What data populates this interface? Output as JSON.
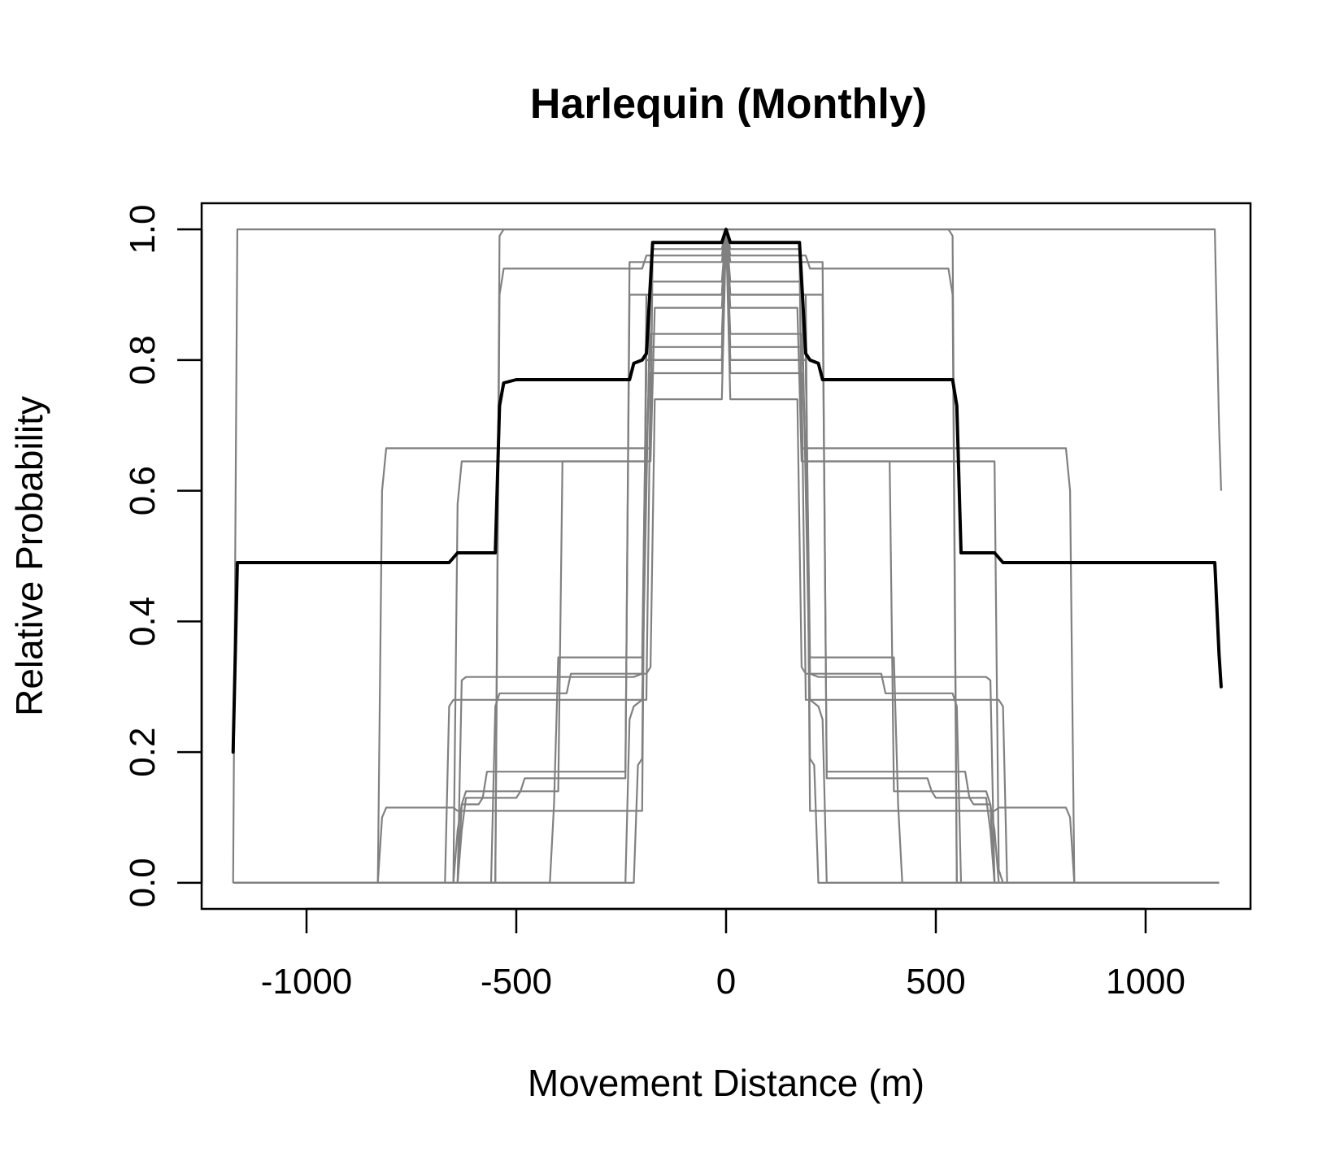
{
  "chart_data": {
    "type": "line",
    "title": "Harlequin (Monthly)",
    "xlabel": "Movement Distance (m)",
    "ylabel": "Relative Probability",
    "xlim": [
      -1250,
      1250
    ],
    "ylim": [
      -0.04,
      1.04
    ],
    "xticks": [
      -1000,
      -500,
      0,
      500,
      1000
    ],
    "xtick_labels": [
      "-1000",
      "-500",
      "0",
      "500",
      "1000"
    ],
    "yticks": [
      0.0,
      0.2,
      0.4,
      0.6,
      0.8,
      1.0
    ],
    "ytick_labels": [
      "0.0",
      "0.2",
      "0.4",
      "0.6",
      "0.8",
      "1.0"
    ],
    "grid": false,
    "legend": "none",
    "colors": {
      "mean": "#000000",
      "individual": "#808080",
      "frame": "#000000"
    },
    "mean_series": {
      "x": [
        -1175,
        -1165,
        -1155,
        -660,
        -640,
        -630,
        -550,
        -540,
        -530,
        -500,
        -400,
        -230,
        -220,
        -200,
        -190,
        -175,
        -10,
        0,
        10,
        175,
        190,
        200,
        220,
        230,
        400,
        500,
        540,
        550,
        560,
        620,
        640,
        660,
        1165,
        1175,
        1180
      ],
      "y": [
        0.2,
        0.49,
        0.49,
        0.49,
        0.505,
        0.505,
        0.505,
        0.73,
        0.765,
        0.77,
        0.77,
        0.77,
        0.795,
        0.8,
        0.81,
        0.98,
        0.98,
        1.0,
        0.98,
        0.98,
        0.81,
        0.8,
        0.795,
        0.77,
        0.77,
        0.77,
        0.77,
        0.73,
        0.505,
        0.505,
        0.505,
        0.49,
        0.49,
        0.35,
        0.3
      ]
    },
    "individual_series": [
      {
        "x": [
          -1175,
          -1170,
          -1165,
          0,
          1165,
          1175,
          1180
        ],
        "y": [
          0,
          0.5,
          1.0,
          1.0,
          1.0,
          0.7,
          0.6
        ]
      },
      {
        "x": [
          -1175,
          -830,
          -820,
          -810,
          -750,
          -740,
          -180,
          -175,
          -10,
          0,
          10,
          175,
          180,
          740,
          750,
          810,
          820,
          830,
          1175
        ],
        "y": [
          0,
          0,
          0.6,
          0.665,
          0.665,
          0.665,
          0.665,
          0.97,
          0.97,
          1.0,
          0.97,
          0.97,
          0.665,
          0.665,
          0.665,
          0.665,
          0.6,
          0,
          0
        ]
      },
      {
        "x": [
          -1175,
          -830,
          -820,
          -810,
          -650,
          -640,
          -630,
          -540,
          -530,
          -200,
          -190,
          -10,
          0,
          10,
          190,
          200,
          530,
          540,
          630,
          640,
          650,
          810,
          820,
          830,
          1175
        ],
        "y": [
          0,
          0,
          0.1,
          0.115,
          0.115,
          0.11,
          0.11,
          0.11,
          0.11,
          0.11,
          0.9,
          0.9,
          1.0,
          0.9,
          0.9,
          0.11,
          0.11,
          0.11,
          0.11,
          0.11,
          0.115,
          0.115,
          0.1,
          0,
          0
        ]
      },
      {
        "x": [
          -1175,
          -550,
          -540,
          -530,
          -200,
          -190,
          -10,
          0,
          10,
          190,
          200,
          530,
          540,
          550,
          1175
        ],
        "y": [
          0,
          0,
          0.9,
          0.94,
          0.94,
          0.96,
          0.96,
          1.0,
          0.96,
          0.96,
          0.94,
          0.94,
          0.9,
          0,
          0
        ]
      },
      {
        "x": [
          -1175,
          -550,
          -540,
          -530,
          -200,
          -190,
          -10,
          0,
          10,
          190,
          200,
          530,
          540,
          550,
          1175
        ],
        "y": [
          0,
          0,
          0.99,
          1.0,
          1.0,
          1.0,
          1.0,
          1.0,
          1.0,
          1.0,
          1.0,
          1.0,
          0.99,
          0,
          0
        ]
      },
      {
        "x": [
          -1175,
          -660,
          -650,
          -640,
          -630,
          -240,
          -230,
          -220,
          -180,
          -170,
          -10,
          0,
          10,
          170,
          180,
          220,
          230,
          240,
          630,
          640,
          650,
          660,
          1175
        ],
        "y": [
          0,
          0,
          0,
          0.58,
          0.645,
          0.645,
          0.645,
          0.645,
          0.645,
          0.88,
          0.88,
          1.0,
          0.88,
          0.88,
          0.645,
          0.645,
          0.645,
          0.645,
          0.645,
          0.645,
          0.02,
          0,
          0
        ]
      },
      {
        "x": [
          -1175,
          -640,
          -630,
          -620,
          -400,
          -390,
          -190,
          -180,
          -10,
          0,
          10,
          180,
          190,
          390,
          400,
          620,
          630,
          640,
          1175
        ],
        "y": [
          0,
          0,
          0.12,
          0.14,
          0.14,
          0.645,
          0.645,
          0.84,
          0.84,
          1.0,
          0.84,
          0.84,
          0.645,
          0.645,
          0.14,
          0.14,
          0.12,
          0,
          0
        ]
      },
      {
        "x": [
          -1175,
          -640,
          -630,
          -620,
          -400,
          -390,
          -380,
          -230,
          -220,
          -200,
          -190,
          -10,
          0,
          10,
          190,
          200,
          220,
          230,
          380,
          390,
          400,
          620,
          630,
          640,
          1175
        ],
        "y": [
          0,
          0,
          0.31,
          0.315,
          0.315,
          0.315,
          0.315,
          0.315,
          0.315,
          0.32,
          0.8,
          0.8,
          1.0,
          0.8,
          0.8,
          0.32,
          0.315,
          0.315,
          0.315,
          0.315,
          0.315,
          0.315,
          0.31,
          0,
          0
        ]
      },
      {
        "x": [
          -1175,
          -670,
          -660,
          -650,
          -400,
          -390,
          -380,
          -240,
          -230,
          -200,
          -190,
          -180,
          -10,
          0,
          10,
          180,
          190,
          200,
          230,
          240,
          380,
          390,
          400,
          650,
          660,
          670,
          1175
        ],
        "y": [
          0,
          0,
          0.27,
          0.28,
          0.28,
          0.28,
          0.28,
          0.28,
          0.28,
          0.28,
          0.28,
          0.78,
          0.78,
          1.0,
          0.78,
          0.78,
          0.28,
          0.28,
          0.28,
          0.28,
          0.28,
          0.28,
          0.28,
          0.28,
          0.27,
          0,
          0
        ]
      },
      {
        "x": [
          -1175,
          -560,
          -550,
          -540,
          -390,
          -380,
          -370,
          -200,
          -190,
          -180,
          -170,
          -10,
          0,
          10,
          170,
          180,
          190,
          200,
          370,
          380,
          390,
          540,
          550,
          560,
          1175
        ],
        "y": [
          0,
          0,
          0.27,
          0.29,
          0.29,
          0.29,
          0.32,
          0.32,
          0.32,
          0.33,
          0.74,
          0.74,
          1.0,
          0.74,
          0.74,
          0.33,
          0.32,
          0.32,
          0.32,
          0.29,
          0.29,
          0.29,
          0.27,
          0,
          0
        ]
      },
      {
        "x": [
          -1175,
          -420,
          -410,
          -400,
          -240,
          -230,
          -200,
          -190,
          -10,
          0,
          10,
          190,
          200,
          230,
          240,
          400,
          410,
          420,
          1175
        ],
        "y": [
          0,
          0,
          0.12,
          0.345,
          0.345,
          0.345,
          0.345,
          0.8,
          0.8,
          1.0,
          0.8,
          0.8,
          0.345,
          0.345,
          0.345,
          0.345,
          0.12,
          0,
          0
        ]
      },
      {
        "x": [
          -1175,
          -240,
          -230,
          -220,
          -200,
          -190,
          -180,
          -10,
          0,
          10,
          180,
          190,
          200,
          220,
          230,
          240,
          1175
        ],
        "y": [
          0,
          0,
          0.25,
          0.27,
          0.28,
          0.6,
          0.92,
          0.92,
          1.0,
          0.92,
          0.92,
          0.6,
          0.28,
          0.27,
          0.25,
          0,
          0
        ]
      },
      {
        "x": [
          -1175,
          -650,
          -640,
          -630,
          -590,
          -580,
          -570,
          -430,
          -420,
          -410,
          -240,
          -230,
          -10,
          0,
          10,
          230,
          240,
          410,
          420,
          430,
          570,
          580,
          590,
          630,
          640,
          650,
          1175
        ],
        "y": [
          0,
          0,
          0.08,
          0.12,
          0.12,
          0.13,
          0.17,
          0.17,
          0.17,
          0.17,
          0.17,
          0.9,
          0.9,
          1.0,
          0.9,
          0.9,
          0.17,
          0.17,
          0.17,
          0.17,
          0.17,
          0.13,
          0.12,
          0.12,
          0.08,
          0,
          0
        ]
      },
      {
        "x": [
          -1175,
          -640,
          -630,
          -620,
          -500,
          -490,
          -480,
          -440,
          -430,
          -420,
          -240,
          -230,
          -10,
          0,
          10,
          230,
          240,
          420,
          430,
          440,
          480,
          490,
          500,
          620,
          630,
          640,
          1175
        ],
        "y": [
          0,
          0,
          0.08,
          0.13,
          0.13,
          0.14,
          0.16,
          0.16,
          0.16,
          0.16,
          0.16,
          0.95,
          0.95,
          1.0,
          0.95,
          0.95,
          0.16,
          0.16,
          0.16,
          0.16,
          0.16,
          0.14,
          0.13,
          0.13,
          0.08,
          0,
          0
        ]
      },
      {
        "x": [
          -1175,
          -220,
          -210,
          -200,
          -190,
          -10,
          0,
          10,
          190,
          200,
          210,
          220,
          1175
        ],
        "y": [
          0,
          0,
          0.18,
          0.19,
          0.82,
          0.82,
          1.0,
          0.82,
          0.82,
          0.19,
          0.18,
          0,
          0
        ]
      }
    ]
  }
}
